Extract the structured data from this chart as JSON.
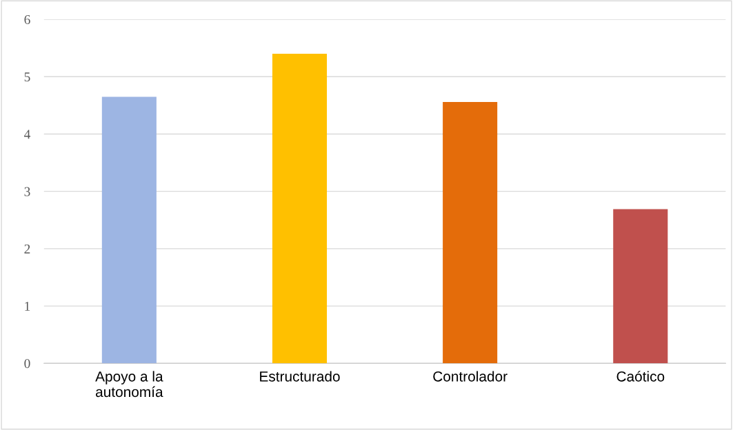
{
  "chart_data": {
    "type": "bar",
    "categories": [
      "Apoyo a la\nautonomía",
      "Estructurado",
      "Controlador",
      "Caótico"
    ],
    "values": [
      4.65,
      5.4,
      4.56,
      2.69
    ],
    "colors": [
      "#9db5e3",
      "#ffc000",
      "#e46c0a",
      "#c0504d"
    ],
    "ylim": [
      0,
      6
    ],
    "yticks": [
      0,
      1,
      2,
      3,
      4,
      5,
      6
    ],
    "grid": "y",
    "legend": false
  }
}
